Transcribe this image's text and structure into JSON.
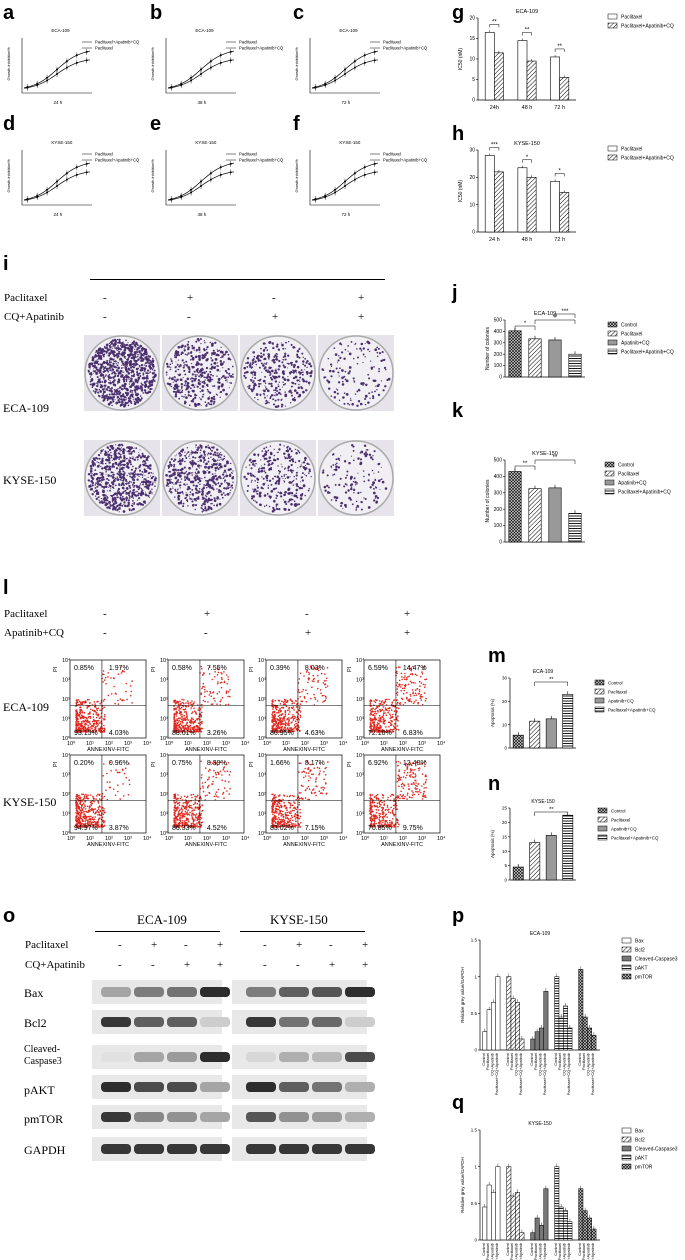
{
  "panels": {
    "a": "a",
    "b": "b",
    "c": "c",
    "d": "d",
    "e": "e",
    "f": "f",
    "g": "g",
    "h": "h",
    "i": "i",
    "j": "j",
    "k": "k",
    "l": "l",
    "m": "m",
    "n": "n",
    "o": "o",
    "p": "p",
    "q": "q"
  },
  "growth": {
    "ylabel": "Growth inhibition%",
    "legend_combo": "Paclitaxel+Apatinib+CQ",
    "legend_pac": "Paclitaxel",
    "plots": [
      {
        "id": "a",
        "title": "ECA-109",
        "xlabel": "24 h",
        "combo_first": true
      },
      {
        "id": "b",
        "title": "ECA-109",
        "xlabel": "48 h",
        "combo_first": false
      },
      {
        "id": "c",
        "title": "ECA-109",
        "xlabel": "72 h",
        "combo_first": false
      },
      {
        "id": "d",
        "title": "KYSE-150",
        "xlabel": "24 h",
        "combo_first": false
      },
      {
        "id": "e",
        "title": "KYSE-150",
        "xlabel": "48 h",
        "combo_first": false
      },
      {
        "id": "f",
        "title": "KYSE-150",
        "xlabel": "72 h",
        "combo_first": false
      }
    ]
  },
  "chart_data": [
    {
      "type": "bar",
      "id": "g",
      "title": "ECA-109",
      "ylabel": "IC50 (nM)",
      "categories": [
        "24h",
        "48 h",
        "72 h"
      ],
      "series": [
        {
          "name": "Paclitaxel",
          "values": [
            16.5,
            14.5,
            10.5
          ]
        },
        {
          "name": "Paclitaxel+Apatinib+CQ",
          "values": [
            11.5,
            9.5,
            5.5
          ]
        }
      ],
      "ylim": [
        0,
        20
      ],
      "yticks": [
        0,
        5,
        10,
        15,
        20
      ],
      "sig": [
        "**",
        "**",
        "**"
      ]
    },
    {
      "type": "bar",
      "id": "h",
      "title": "KYSE-150",
      "ylabel": "IC50 (nM)",
      "categories": [
        "24 h",
        "48 h",
        "72 h"
      ],
      "series": [
        {
          "name": "Paclitaxel",
          "values": [
            28,
            23.5,
            18.5
          ]
        },
        {
          "name": "Paclitaxel+Apatinib+CQ",
          "values": [
            22,
            20,
            14.5
          ]
        }
      ],
      "ylim": [
        0,
        30
      ],
      "yticks": [
        0,
        10,
        20,
        30
      ],
      "sig": [
        "***",
        "*",
        "*"
      ]
    },
    {
      "type": "bar",
      "id": "j",
      "title": "ECA-109",
      "ylabel": "Number of colonies",
      "categories": [
        "Control",
        "Paclitaxel",
        "Apatinib+CQ",
        "Paclitaxel+Apatinib+CQ"
      ],
      "values": [
        405,
        335,
        325,
        200
      ],
      "ylim": [
        0,
        500
      ],
      "yticks": [
        0,
        100,
        200,
        300,
        400,
        500
      ],
      "sig": [
        "*",
        "**",
        "***"
      ]
    },
    {
      "type": "bar",
      "id": "k",
      "title": "KYSE-150",
      "ylabel": "Number of colonies",
      "categories": [
        "Control",
        "Paclitaxel",
        "Apatinib+CQ",
        "Paclitaxel+Apatinib+CQ"
      ],
      "values": [
        430,
        325,
        330,
        175
      ],
      "ylim": [
        0,
        500
      ],
      "yticks": [
        0,
        100,
        200,
        300,
        400,
        500
      ],
      "sig": [
        "**",
        "**"
      ]
    },
    {
      "type": "bar",
      "id": "m",
      "title": "ECA-109",
      "ylabel": "Apoptosis (%)",
      "categories": [
        "Control",
        "Paclitaxel",
        "Apatinib+CQ",
        "Paclitaxel+Apatinib+CQ"
      ],
      "values": [
        5.5,
        11.5,
        12.5,
        23
      ],
      "ylim": [
        0,
        30
      ],
      "yticks": [
        0,
        10,
        20,
        30
      ],
      "sig": [
        "**"
      ]
    },
    {
      "type": "bar",
      "id": "n",
      "title": "KYSE-150",
      "ylabel": "Apoptosis (%)",
      "categories": [
        "Control",
        "Paclitaxel",
        "Apatinib+CQ",
        "Paclitaxel+Apatinib+CQ"
      ],
      "values": [
        4.5,
        13,
        15.5,
        22.5
      ],
      "ylim": [
        0,
        25
      ],
      "yticks": [
        0,
        5,
        10,
        15,
        20,
        25
      ],
      "sig": [
        "**"
      ]
    },
    {
      "type": "bar",
      "id": "p",
      "title": "ECA-109",
      "ylabel": "Relative grey value/GAPDH",
      "groups": [
        "Bax",
        "Bcl2",
        "Cleaved-Caspase3",
        "pAKT",
        "pmTOR"
      ],
      "categories": [
        "Control",
        "Paclitaxel",
        "CQ+Apatinib",
        "Paclitaxel+CQ+Apatinib"
      ],
      "values": [
        [
          0.25,
          0.55,
          0.65,
          1.0
        ],
        [
          1.0,
          0.7,
          0.65,
          0.15
        ],
        [
          0.15,
          0.25,
          0.3,
          0.8
        ],
        [
          1.0,
          0.45,
          0.6,
          0.3
        ],
        [
          1.1,
          0.45,
          0.3,
          0.2
        ]
      ],
      "ylim": [
        0,
        1.5
      ],
      "yticks": [
        0,
        0.5,
        1.0,
        1.5
      ]
    },
    {
      "type": "bar",
      "id": "q",
      "title": "KYSE-150",
      "ylabel": "Relative grey value/GAPDH",
      "groups": [
        "Bax",
        "Bcl2",
        "Cleaved-Caspase3",
        "pAKT",
        "pmTOR"
      ],
      "categories": [
        "Control",
        "Paclitaxel",
        "CQ+Apatinib",
        "Paclitaxel+CQ+Apatinib"
      ],
      "values": [
        [
          0.45,
          0.75,
          0.65,
          1.0
        ],
        [
          1.0,
          0.6,
          0.65,
          0.1
        ],
        [
          0.1,
          0.3,
          0.2,
          0.7
        ],
        [
          1.0,
          0.45,
          0.4,
          0.25
        ],
        [
          0.7,
          0.4,
          0.3,
          0.15
        ]
      ],
      "ylim": [
        0,
        1.5
      ],
      "yticks": [
        0,
        0.5,
        1.0,
        1.5
      ]
    }
  ],
  "legend4": [
    "Control",
    "Paclitaxel",
    "Apatinib+CQ",
    "Paclitaxel+Apatinib+CQ"
  ],
  "legend5": [
    "Bax",
    "Bcl2",
    "Cleaved-Caspase3",
    "pAKT",
    "pmTOR"
  ],
  "colony": {
    "row1": "Paclitaxel",
    "row2": "CQ+Apatinib",
    "signs1": [
      "-",
      "+",
      "-",
      "+"
    ],
    "signs2": [
      "-",
      "-",
      "+",
      "+"
    ],
    "cells": [
      "ECA-109",
      "KYSE-150"
    ]
  },
  "flow": {
    "row1": "Paclitaxel",
    "row2": "Apatinib+CQ",
    "signs1": [
      "-",
      "+",
      "-",
      "+"
    ],
    "signs2": [
      "-",
      "-",
      "+",
      "+"
    ],
    "cells": [
      "ECA-109",
      "KYSE-150"
    ],
    "xlabel": "ANNEXINV-FITC",
    "ylabel": "PI",
    "quads": [
      [
        [
          "0.85%",
          "1.97%",
          "93.15%",
          "4.03%"
        ],
        [
          "0.58%",
          "7.55%",
          "88.61%",
          "3.26%"
        ],
        [
          "0.39%",
          "8.03%",
          "86.95%",
          "4.63%"
        ],
        [
          "6.59%",
          "14.47%",
          "72.10%",
          "6.83%"
        ]
      ],
      [
        [
          "0.20%",
          "0.96%",
          "94.97%",
          "3.87%"
        ],
        [
          "0.75%",
          "8.39%",
          "86.33%",
          "4.52%"
        ],
        [
          "1.66%",
          "8.17%",
          "83.02%",
          "7.15%"
        ],
        [
          "6.92%",
          "12.48%",
          "70.85%",
          "9.75%"
        ]
      ]
    ]
  },
  "western": {
    "cells": [
      "ECA-109",
      "KYSE-150"
    ],
    "row1": "Paclitaxel",
    "row2": "CQ+Apatinib",
    "signs1": [
      "-",
      "+",
      "-",
      "+"
    ],
    "signs2": [
      "-",
      "-",
      "+",
      "+"
    ],
    "proteins": [
      "Bax",
      "Bcl2",
      "Cleaved-\nCaspase3",
      "pAKT",
      "pmTOR",
      "GAPDH"
    ]
  },
  "colors": {
    "bar_fill": "#ffffff",
    "plate_purple": "#5a3f7a",
    "dot_red": "#e0281e"
  }
}
